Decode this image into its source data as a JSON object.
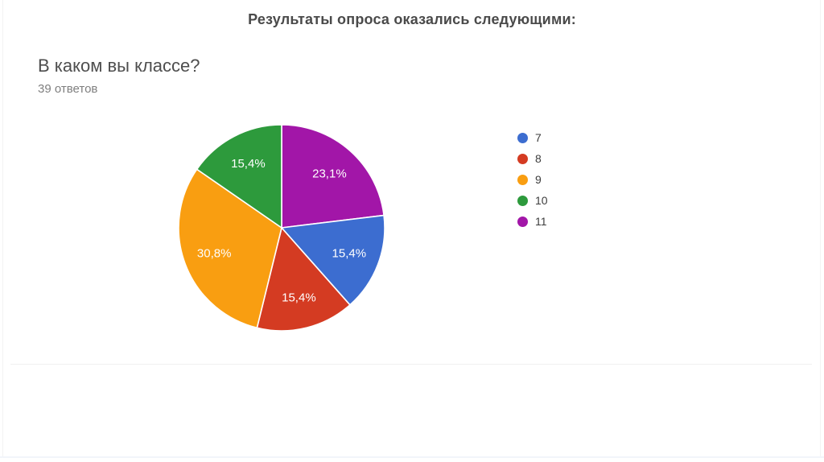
{
  "slide": {
    "title": "Результаты опроса оказались следующими:"
  },
  "chart_data": {
    "type": "pie",
    "title": "В каком вы классе?",
    "subtitle": "39 ответов",
    "total_responses": 39,
    "categories": [
      "7",
      "8",
      "9",
      "10",
      "11"
    ],
    "values": [
      15.4,
      15.4,
      30.8,
      15.4,
      23.1
    ],
    "percent_labels": [
      "15,4%",
      "15,4%",
      "30,8%",
      "15,4%",
      "23,1%"
    ],
    "colors": [
      "#3c6dd0",
      "#d43b22",
      "#f99e11",
      "#2d9a3c",
      "#a216a8"
    ],
    "slice_label_color": "#ffffff",
    "legend_position": "right",
    "start_angle_deg": 0,
    "draw_order_clockwise_from_top": [
      4,
      0,
      1,
      2,
      3
    ],
    "grid": false
  }
}
